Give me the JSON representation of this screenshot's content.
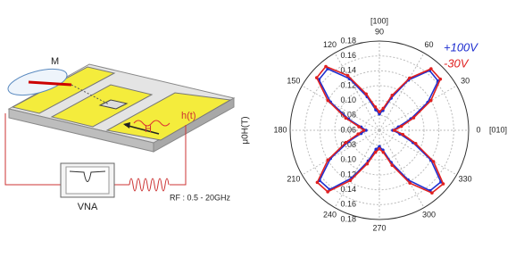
{
  "diagram": {
    "labels": {
      "m": "M",
      "h_t": "h(t)",
      "h": "H",
      "vna": "VNA",
      "rf": "RF : 0.5 - 20GHz"
    }
  },
  "chart_data": {
    "type": "polar",
    "y_label": "μ0H(T)",
    "annotations": {
      "top": "[100]",
      "right": "[010]"
    },
    "x": [
      0,
      10,
      20,
      30,
      40,
      50,
      60,
      70,
      80,
      90,
      100,
      110,
      120,
      130,
      140,
      150,
      160,
      170,
      180,
      190,
      200,
      210,
      220,
      230,
      240,
      250,
      260,
      270,
      280,
      290,
      300,
      310,
      320,
      330,
      340,
      350
    ],
    "xticks": [
      0,
      30,
      60,
      90,
      120,
      150,
      180,
      210,
      240,
      270,
      300,
      330
    ],
    "ylim": [
      0.06,
      0.18
    ],
    "yticks": [
      {
        "value": 0.06,
        "label": "0.06"
      },
      {
        "value": 0.08,
        "label": "0.08"
      },
      {
        "value": 0.1,
        "label": "0.10"
      },
      {
        "value": 0.12,
        "label": "0.12"
      },
      {
        "value": 0.14,
        "label": "0.14"
      },
      {
        "value": 0.16,
        "label": "0.16"
      },
      {
        "value": 0.18,
        "label": "0.18"
      }
    ],
    "grid": true,
    "series": [
      {
        "name": "+100V",
        "color": "#1f2fd0",
        "values": [
          0.078,
          0.086,
          0.105,
          0.135,
          0.163,
          0.165,
          0.138,
          0.106,
          0.087,
          0.082,
          0.088,
          0.108,
          0.14,
          0.168,
          0.166,
          0.136,
          0.104,
          0.085,
          0.078,
          0.085,
          0.104,
          0.136,
          0.165,
          0.164,
          0.134,
          0.104,
          0.086,
          0.082,
          0.087,
          0.106,
          0.137,
          0.166,
          0.168,
          0.14,
          0.108,
          0.088
        ]
      },
      {
        "name": "-30V",
        "color": "#e02020",
        "values": [
          0.08,
          0.09,
          0.109,
          0.14,
          0.167,
          0.168,
          0.141,
          0.11,
          0.09,
          0.085,
          0.092,
          0.112,
          0.145,
          0.172,
          0.17,
          0.14,
          0.108,
          0.088,
          0.081,
          0.089,
          0.108,
          0.14,
          0.169,
          0.168,
          0.138,
          0.108,
          0.09,
          0.085,
          0.09,
          0.11,
          0.142,
          0.17,
          0.172,
          0.144,
          0.112,
          0.092
        ]
      }
    ]
  }
}
